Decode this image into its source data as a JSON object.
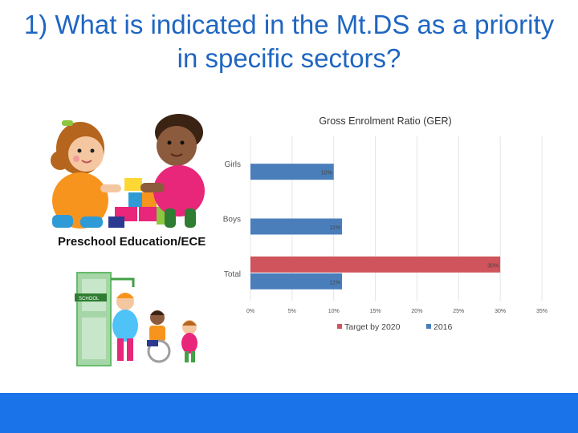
{
  "slide": {
    "title": "1) What is indicated in the Mt.DS as a priority in specific sectors?",
    "caption": "Preschool Education/ECE"
  },
  "colors": {
    "title": "#1f66c2",
    "target_series": "#d0545b",
    "current_series": "#4a7ebb",
    "footer": "#1a73e8"
  },
  "illustrations": {
    "top": "children-playing-with-blocks",
    "bottom": "children-at-school-door",
    "door_sign": "SCHOOL"
  },
  "chart_data": {
    "type": "bar",
    "orientation": "horizontal",
    "title": "Gross Enrolment Ratio (GER)",
    "categories": [
      "Girls",
      "Boys",
      "Total"
    ],
    "series": [
      {
        "name": "Target by 2020",
        "values": [
          null,
          null,
          30
        ],
        "color": "#d0545b"
      },
      {
        "name": "2016",
        "values": [
          10,
          11,
          11
        ],
        "color": "#4a7ebb"
      }
    ],
    "data_labels": [
      {
        "series": 0,
        "category": 2,
        "text": "30%"
      },
      {
        "series": 1,
        "category": 0,
        "text": "10%"
      },
      {
        "series": 1,
        "category": 1,
        "text": "11%"
      },
      {
        "series": 1,
        "category": 2,
        "text": "11%"
      }
    ],
    "xlim": [
      0,
      35
    ],
    "x_ticks": [
      0,
      5,
      10,
      15,
      20,
      25,
      30,
      35
    ],
    "x_tick_format": "%",
    "grid": true,
    "legend_position": "bottom"
  }
}
